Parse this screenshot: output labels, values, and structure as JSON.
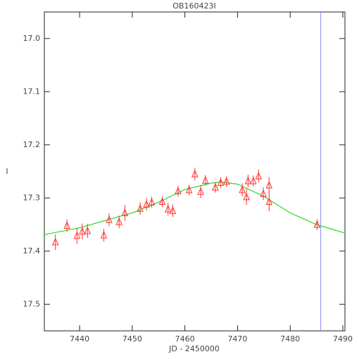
{
  "chart_data": {
    "type": "scatter",
    "title": "OB160423I",
    "xlabel": "JD - 2450000",
    "ylabel": "I",
    "xlim": [
      7433.3,
      7490.4
    ],
    "ylim": [
      17.55,
      16.95
    ],
    "xticks": [
      7440,
      7450,
      7460,
      7470,
      7480,
      7490
    ],
    "yticks": [
      {
        "value": 17,
        "label": "17.0"
      },
      17.1,
      17.2,
      17.3,
      17.4,
      17.5
    ],
    "points": {
      "color": "#ff3030",
      "x": [
        7435.4,
        7437.6,
        7439.5,
        7440.5,
        7441.5,
        7444.6,
        7445.6,
        7447.5,
        7448.6,
        7451.5,
        7452.7,
        7453.7,
        7455.7,
        7456.8,
        7457.7,
        7458.7,
        7460.8,
        7461.9,
        7463.0,
        7463.9,
        7465.8,
        7466.8,
        7467.9,
        7470.9,
        7471.7,
        7472.0,
        7473.0,
        7474.0,
        7474.9,
        7476.0,
        7476.0,
        7485.1
      ],
      "values": [
        17.383,
        17.352,
        17.371,
        17.363,
        17.362,
        17.37,
        17.341,
        17.345,
        17.328,
        17.32,
        17.312,
        17.308,
        17.307,
        17.321,
        17.324,
        17.287,
        17.285,
        17.255,
        17.288,
        17.267,
        17.28,
        17.271,
        17.269,
        17.285,
        17.298,
        17.268,
        17.268,
        17.259,
        17.292,
        17.307,
        17.276,
        17.35
      ],
      "errors": [
        0.015,
        0.012,
        0.015,
        0.015,
        0.013,
        0.012,
        0.012,
        0.012,
        0.015,
        0.012,
        0.012,
        0.01,
        0.01,
        0.012,
        0.012,
        0.01,
        0.01,
        0.012,
        0.012,
        0.01,
        0.01,
        0.01,
        0.01,
        0.012,
        0.015,
        0.012,
        0.01,
        0.012,
        0.012,
        0.018,
        0.015,
        0.01
      ]
    },
    "model": {
      "color": "#22dd22",
      "x": [
        7433.3,
        7440,
        7450,
        7455,
        7460,
        7465,
        7467,
        7470,
        7475,
        7480,
        7485,
        7490.4
      ],
      "values": [
        17.369,
        17.356,
        17.328,
        17.308,
        17.284,
        17.272,
        17.27,
        17.274,
        17.297,
        17.328,
        17.35,
        17.366
      ]
    },
    "vline": {
      "x": 7485.8,
      "color": "#8888ff"
    }
  }
}
